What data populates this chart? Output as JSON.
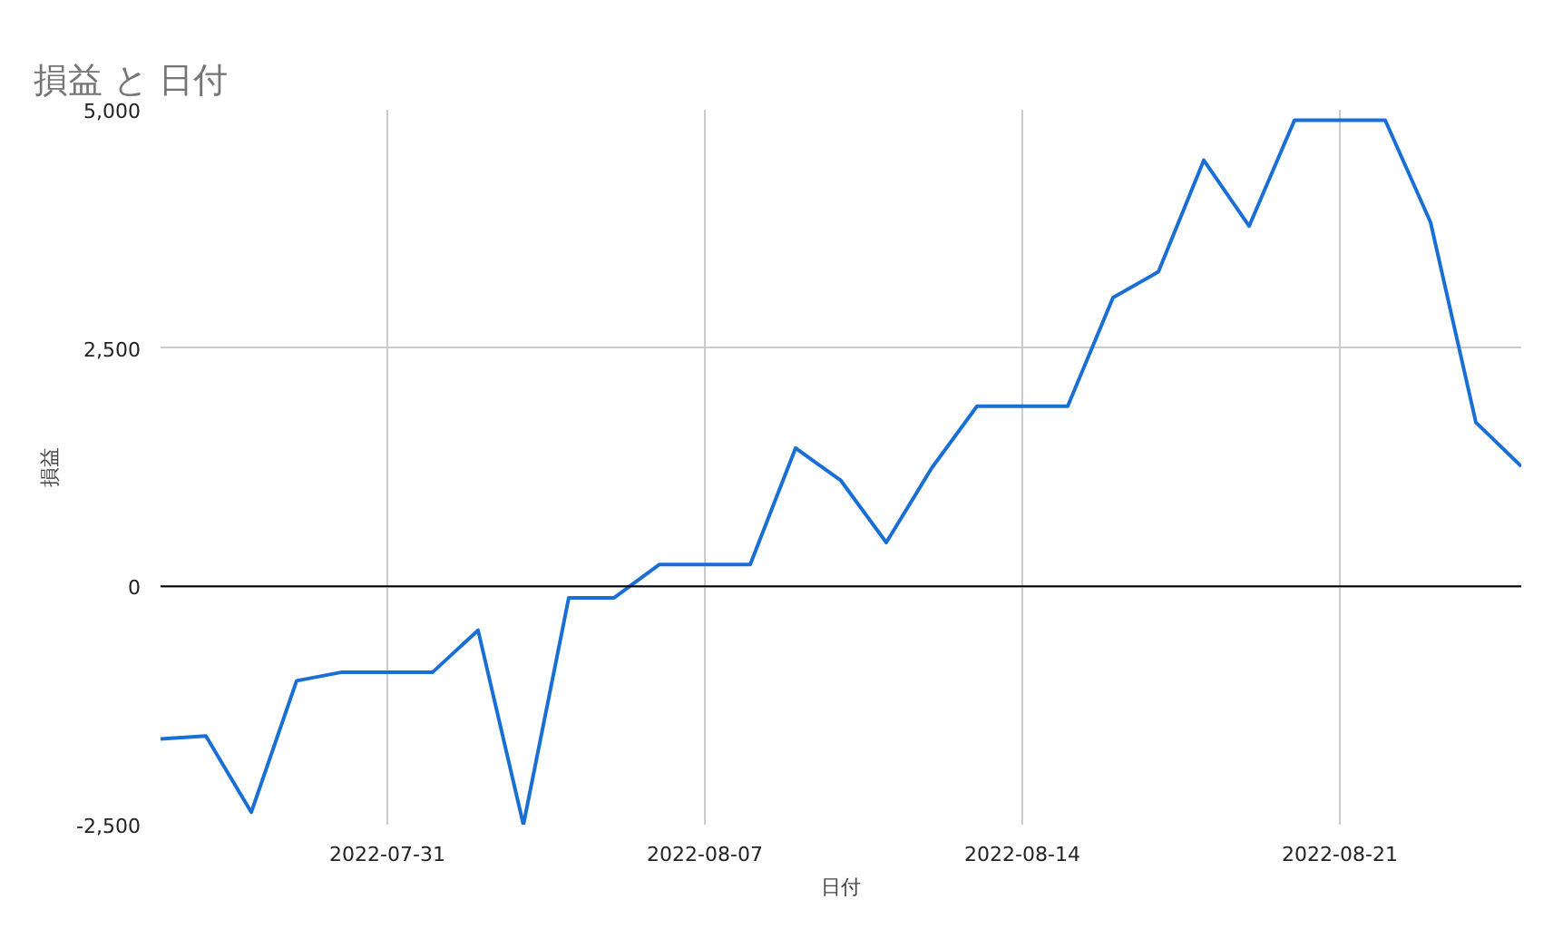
{
  "chart_data": {
    "type": "line",
    "title": "損益 と 日付",
    "xlabel": "日付",
    "ylabel": "損益",
    "x": [
      "2022-07-26",
      "2022-07-27",
      "2022-07-28",
      "2022-07-29",
      "2022-07-30",
      "2022-07-31",
      "2022-08-01",
      "2022-08-02",
      "2022-08-03",
      "2022-08-04",
      "2022-08-05",
      "2022-08-06",
      "2022-08-07",
      "2022-08-08",
      "2022-08-09",
      "2022-08-10",
      "2022-08-11",
      "2022-08-12",
      "2022-08-13",
      "2022-08-14",
      "2022-08-15",
      "2022-08-16",
      "2022-08-17",
      "2022-08-18",
      "2022-08-19",
      "2022-08-20",
      "2022-08-21",
      "2022-08-22",
      "2022-08-23",
      "2022-08-24",
      "2022-08-25"
    ],
    "series": [
      {
        "color": "#1a6fd4",
        "values": [
          -1600,
          -1570,
          -2370,
          -990,
          -900,
          -900,
          -900,
          -460,
          -2500,
          -120,
          -120,
          230,
          230,
          230,
          1450,
          1110,
          460,
          1240,
          1890,
          1890,
          1890,
          3030,
          3300,
          4470,
          3780,
          4890,
          4890,
          4890,
          3820,
          1720,
          1260
        ]
      }
    ],
    "xlim": [
      "2022-07-26",
      "2022-08-25"
    ],
    "xticks": [
      "2022-07-31",
      "2022-08-07",
      "2022-08-14",
      "2022-08-21"
    ],
    "ylim": [
      -2500,
      5000
    ],
    "yticks": [
      {
        "value": -2500,
        "label": "-2,500"
      },
      0,
      {
        "value": 2500,
        "label": "2,500"
      },
      {
        "value": 5000,
        "label": "5,000"
      }
    ],
    "ref_lines": [
      {
        "axis": "y",
        "value": 0,
        "color": "#000000"
      }
    ],
    "grid": true,
    "marker": "none",
    "line_style": "solid"
  }
}
